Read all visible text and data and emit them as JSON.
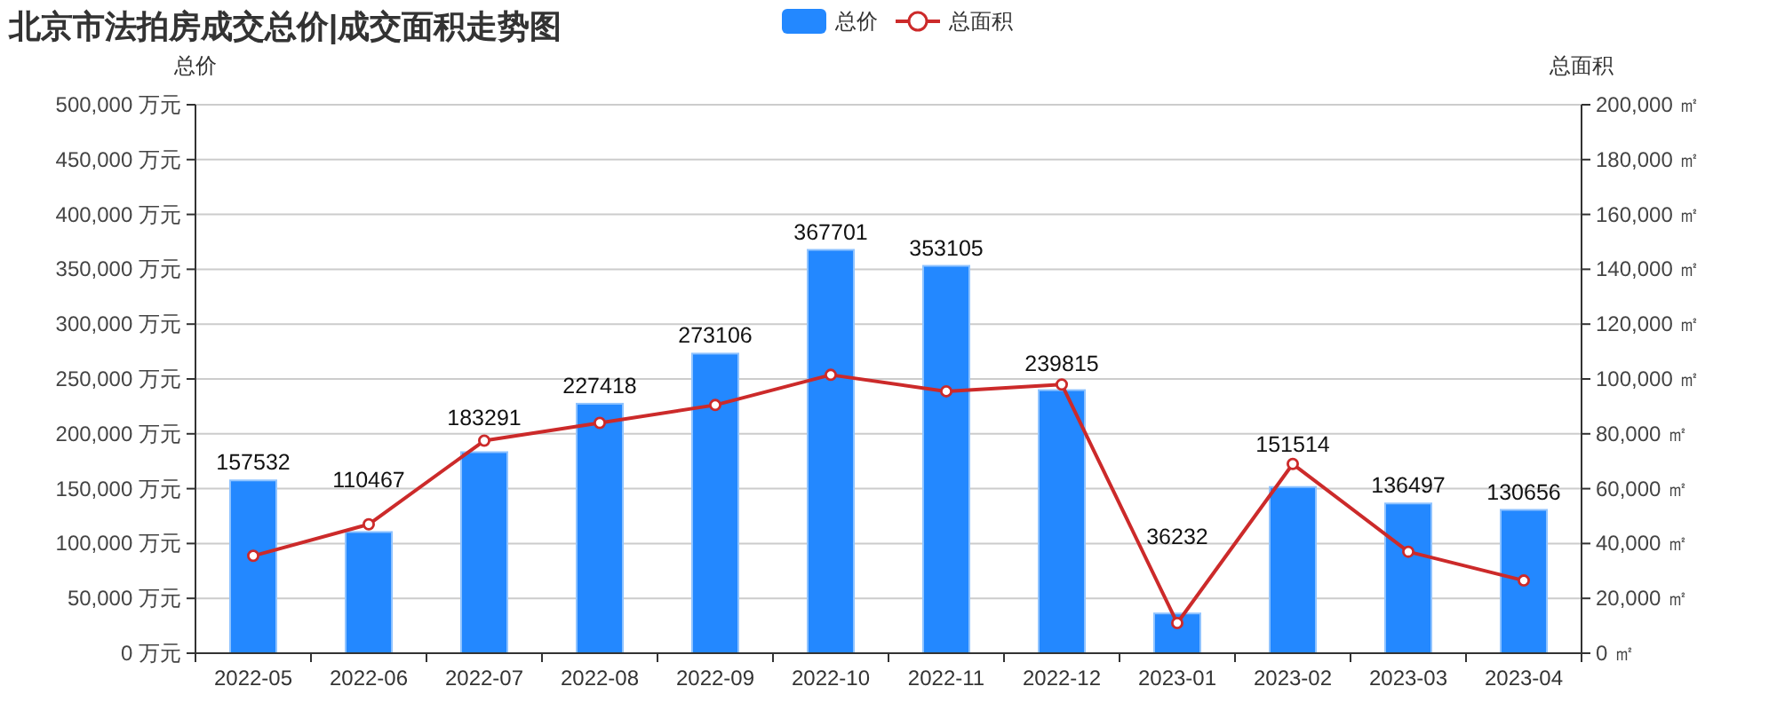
{
  "chart_data": {
    "type": "bar",
    "title": "北京市法拍房成交总价|成交面积走势图",
    "ylabel": "总价",
    "y2label": "总面积",
    "categories": [
      "2022-05",
      "2022-06",
      "2022-07",
      "2022-08",
      "2022-09",
      "2022-10",
      "2022-11",
      "2022-12",
      "2023-01",
      "2023-02",
      "2023-03",
      "2023-04"
    ],
    "series": [
      {
        "name": "总价",
        "color": "#2388ff",
        "data_labels": true,
        "values": [
          157532,
          110467,
          183291,
          227418,
          273106,
          367701,
          353105,
          239815,
          36232,
          151514,
          136497,
          130656
        ]
      },
      {
        "name": "总面积",
        "type": "line",
        "axis": "y2",
        "color": "#cc2a2a",
        "marker": "circle",
        "values": [
          35500,
          47000,
          77500,
          84000,
          90500,
          101500,
          95500,
          98000,
          11000,
          69000,
          37000,
          26500
        ]
      }
    ],
    "ylim": [
      0,
      500000
    ],
    "yticks": [
      {
        "value": 0,
        "label": "0 万元"
      },
      {
        "value": 50000,
        "label": "50,000 万元"
      },
      {
        "value": 100000,
        "label": "100,000 万元"
      },
      {
        "value": 150000,
        "label": "150,000 万元"
      },
      {
        "value": 200000,
        "label": "200,000 万元"
      },
      {
        "value": 250000,
        "label": "250,000 万元"
      },
      {
        "value": 300000,
        "label": "300,000 万元"
      },
      {
        "value": 350000,
        "label": "350,000 万元"
      },
      {
        "value": 400000,
        "label": "400,000 万元"
      },
      {
        "value": 450000,
        "label": "450,000 万元"
      },
      {
        "value": 500000,
        "label": "500,000 万元"
      }
    ],
    "y2lim": [
      0,
      200000
    ],
    "y2ticks": [
      {
        "value": 0,
        "label": "0 ㎡"
      },
      {
        "value": 20000,
        "label": "20,000 ㎡"
      },
      {
        "value": 40000,
        "label": "40,000 ㎡"
      },
      {
        "value": 60000,
        "label": "60,000 ㎡"
      },
      {
        "value": 80000,
        "label": "80,000 ㎡"
      },
      {
        "value": 100000,
        "label": "100,000 ㎡"
      },
      {
        "value": 120000,
        "label": "120,000 ㎡"
      },
      {
        "value": 140000,
        "label": "140,000 ㎡"
      },
      {
        "value": 160000,
        "label": "160,000 ㎡"
      },
      {
        "value": 180000,
        "label": "180,000 ㎡"
      },
      {
        "value": 200000,
        "label": "200,000 ㎡"
      }
    ],
    "grid": "y",
    "legend": "top"
  }
}
